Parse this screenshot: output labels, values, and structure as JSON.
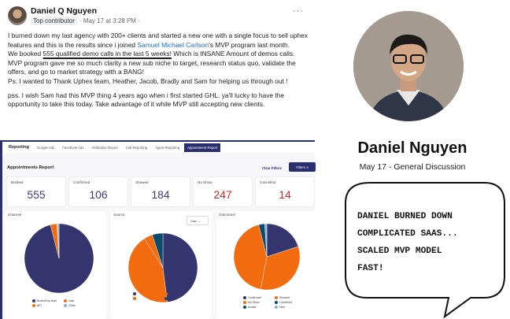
{
  "post": {
    "author": "Daniel Q Nguyen",
    "badge": "Top contributor",
    "timestamp": "· May 17 at 3:28 PM ·",
    "more": "···",
    "p1_a": "I burned down my last agency with 200+ clients and started a new one with a single focus to sell uphex features and this is the results since i joined ",
    "p1_link": "Samuel Michael Carlson",
    "p1_b": "'s MVP program last month.",
    "p2_a": "We booked ",
    "p2_ul": "555 qualified demo calls in the last 5 weeks!",
    "p2_b": " Which is INSANE Amount of demos calls.",
    "p3": "MVP program gave me so much clarity a new sub niche to target, research status quo, validate the offers, and go to market strategy with a BANG!",
    "p4": "Ps. I wanted to Thank Uphex team, Heather, Jacob, Bradly and Sam for helping us through out !",
    "p5": "pss. I wish Sam had this MVP thing 4 years ago when i first started GHL. ya'll lucky to have the opportunity to take this today. Take advantage of it while MVP still accepting new clients."
  },
  "dashboard": {
    "tabs": [
      "Reporting",
      "Google Ads",
      "Facebook Ads",
      "Attribution Report",
      "Call Reporting",
      "Agent Reporting",
      "Appointment Report"
    ],
    "active_tab": "Appointment Report",
    "title": "Appointments Report",
    "clear_filters": "Clear Filters",
    "filters": "Filters ≡",
    "cards": [
      {
        "label": "Booked",
        "value": "555",
        "color": "#3b3f80"
      },
      {
        "label": "Confirmed",
        "value": "106",
        "color": "#3b3f80"
      },
      {
        "label": "Showed",
        "value": "184",
        "color": "#3b3f80"
      },
      {
        "label": "No Show",
        "value": "247",
        "color": "#d62828"
      },
      {
        "label": "Cancelled",
        "value": "14",
        "color": "#d62828"
      }
    ],
    "source_select": "User"
  },
  "chart_data": [
    {
      "type": "pie",
      "title": "Channel",
      "labels": [
        "Booked by lead",
        "User",
        "API",
        "Other"
      ],
      "values": [
        96,
        3,
        0.3,
        0.7
      ],
      "colors": [
        "#34356f",
        "#f26b0f",
        "#f26b0f",
        "#7fb3d9"
      ]
    },
    {
      "type": "pie",
      "title": "Source",
      "labels": [
        "",
        "",
        "",
        ""
      ],
      "values": [
        48,
        43,
        4,
        5
      ],
      "colors": [
        "#34356f",
        "#f26b0f",
        "#f26b0f",
        "#0f4c6b"
      ]
    },
    {
      "type": "pie",
      "title": "Outcomes",
      "labels": [
        "Confirmed",
        "Showed",
        "No Show",
        "Cancelled",
        "Invalid",
        "New"
      ],
      "values": [
        20,
        33,
        43,
        0,
        3,
        1
      ],
      "colors": [
        "#34356f",
        "#f26b0f",
        "#f26b0f",
        "#0f4c6b",
        "#0f4c6b",
        "#7fb3d9"
      ]
    }
  ],
  "profile": {
    "name": "Daniel Nguyen",
    "subtitle": "May 17 - General Discussion",
    "bubble": "DANIEL BURNED DOWN\nCOMPLICATED SAAS...\nSCALED MVP MODEL\nFAST!"
  }
}
